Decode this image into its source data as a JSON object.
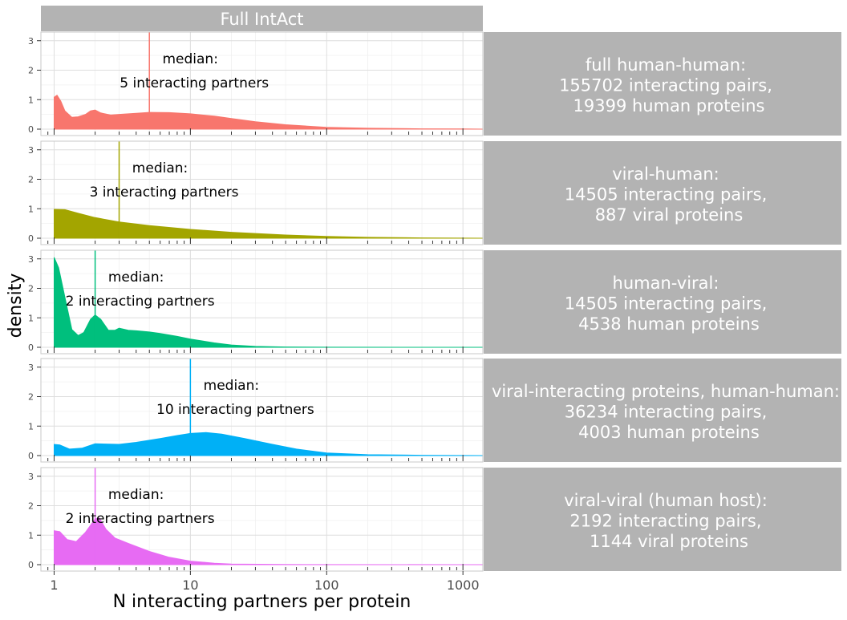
{
  "chart_data": {
    "type": "area",
    "facet_title": "Full IntAct",
    "xlabel": "N interacting partners per protein",
    "ylabel": "density",
    "x_scale": "log10",
    "xlim": [
      0.8,
      1400
    ],
    "ylim": [
      0,
      3.2
    ],
    "x_ticks": [
      1,
      10,
      100,
      1000
    ],
    "x_tick_labels": [
      "1",
      "10",
      "100",
      "1000"
    ],
    "y_ticks": [
      0,
      1,
      2,
      3
    ],
    "y_tick_labels": [
      "0",
      "1",
      "2",
      "3"
    ],
    "grid": true,
    "rug_ticks": [
      1,
      2,
      3,
      4,
      5,
      6,
      7,
      8,
      9,
      10,
      20,
      30,
      40,
      50,
      60,
      70,
      80,
      90,
      100,
      200,
      300,
      400,
      500,
      600,
      700,
      800,
      900,
      1000
    ],
    "panels": [
      {
        "strip": [
          "full human-human:",
          "155702 interacting pairs,",
          "19399 human proteins"
        ],
        "color": "#F8766D",
        "median": 5,
        "median_label": [
          "median:",
          "5 interacting partners"
        ],
        "density": [
          [
            1,
            1.08
          ],
          [
            1.05,
            1.15
          ],
          [
            1.12,
            0.95
          ],
          [
            1.2,
            0.62
          ],
          [
            1.35,
            0.4
          ],
          [
            1.5,
            0.42
          ],
          [
            1.7,
            0.5
          ],
          [
            1.85,
            0.62
          ],
          [
            2,
            0.65
          ],
          [
            2.2,
            0.55
          ],
          [
            2.6,
            0.48
          ],
          [
            3,
            0.5
          ],
          [
            4,
            0.54
          ],
          [
            5,
            0.57
          ],
          [
            7,
            0.56
          ],
          [
            10,
            0.52
          ],
          [
            15,
            0.44
          ],
          [
            20,
            0.36
          ],
          [
            30,
            0.25
          ],
          [
            50,
            0.15
          ],
          [
            100,
            0.06
          ],
          [
            200,
            0.03
          ],
          [
            500,
            0.01
          ],
          [
            1000,
            0.005
          ],
          [
            1400,
            0
          ]
        ]
      },
      {
        "strip": [
          "viral-human:",
          "14505 interacting pairs,",
          "887 viral proteins"
        ],
        "color": "#A3A500",
        "median": 3,
        "median_label": [
          "median:",
          "3 interacting partners"
        ],
        "density": [
          [
            1,
            0.98
          ],
          [
            1.2,
            0.97
          ],
          [
            1.5,
            0.85
          ],
          [
            2,
            0.7
          ],
          [
            3,
            0.55
          ],
          [
            5,
            0.43
          ],
          [
            10,
            0.3
          ],
          [
            20,
            0.2
          ],
          [
            50,
            0.11
          ],
          [
            100,
            0.06
          ],
          [
            200,
            0.03
          ],
          [
            500,
            0.01
          ],
          [
            1000,
            0.004
          ],
          [
            1400,
            0
          ]
        ]
      },
      {
        "strip": [
          "human-viral:",
          "14505 interacting pairs,",
          "4538 human proteins"
        ],
        "color": "#00BF7D",
        "median": 2,
        "median_label": [
          "median:",
          "2 interacting partners"
        ],
        "density": [
          [
            1,
            3.05
          ],
          [
            1.08,
            2.7
          ],
          [
            1.2,
            1.7
          ],
          [
            1.35,
            0.6
          ],
          [
            1.5,
            0.4
          ],
          [
            1.65,
            0.5
          ],
          [
            1.85,
            0.95
          ],
          [
            2,
            1.1
          ],
          [
            2.2,
            0.95
          ],
          [
            2.5,
            0.58
          ],
          [
            2.8,
            0.58
          ],
          [
            3,
            0.65
          ],
          [
            3.5,
            0.58
          ],
          [
            4,
            0.56
          ],
          [
            5,
            0.52
          ],
          [
            6,
            0.47
          ],
          [
            8,
            0.37
          ],
          [
            10,
            0.28
          ],
          [
            15,
            0.15
          ],
          [
            20,
            0.08
          ],
          [
            30,
            0.03
          ],
          [
            50,
            0.01
          ],
          [
            100,
            0.003
          ],
          [
            1000,
            0.001
          ],
          [
            1400,
            0
          ]
        ]
      },
      {
        "strip": [
          "viral-interacting proteins, human-human:",
          "36234 interacting pairs,",
          "4003 human proteins"
        ],
        "color": "#00B0F6",
        "median": 10,
        "median_label": [
          "median:",
          "10 interacting partners"
        ],
        "density": [
          [
            1,
            0.38
          ],
          [
            1.1,
            0.36
          ],
          [
            1.3,
            0.22
          ],
          [
            1.6,
            0.25
          ],
          [
            2,
            0.4
          ],
          [
            3,
            0.38
          ],
          [
            4,
            0.45
          ],
          [
            6,
            0.58
          ],
          [
            8,
            0.68
          ],
          [
            10,
            0.75
          ],
          [
            13,
            0.78
          ],
          [
            17,
            0.73
          ],
          [
            25,
            0.58
          ],
          [
            40,
            0.38
          ],
          [
            60,
            0.22
          ],
          [
            100,
            0.09
          ],
          [
            200,
            0.03
          ],
          [
            500,
            0.01
          ],
          [
            1000,
            0.003
          ],
          [
            1400,
            0
          ]
        ]
      },
      {
        "strip": [
          "viral-viral (human host):",
          "2192 interacting pairs,",
          "1144 viral proteins"
        ],
        "color": "#E76BF3",
        "median": 2,
        "median_label": [
          "median:",
          "2 interacting partners"
        ],
        "density": [
          [
            1,
            1.15
          ],
          [
            1.1,
            1.12
          ],
          [
            1.25,
            0.85
          ],
          [
            1.45,
            0.78
          ],
          [
            1.7,
            1.1
          ],
          [
            2,
            1.55
          ],
          [
            2.15,
            1.58
          ],
          [
            2.4,
            1.2
          ],
          [
            2.8,
            0.9
          ],
          [
            3.5,
            0.72
          ],
          [
            5,
            0.45
          ],
          [
            7,
            0.25
          ],
          [
            10,
            0.12
          ],
          [
            15,
            0.05
          ],
          [
            20,
            0.02
          ],
          [
            50,
            0.005
          ],
          [
            1000,
            0.001
          ],
          [
            1400,
            0
          ]
        ]
      }
    ]
  }
}
